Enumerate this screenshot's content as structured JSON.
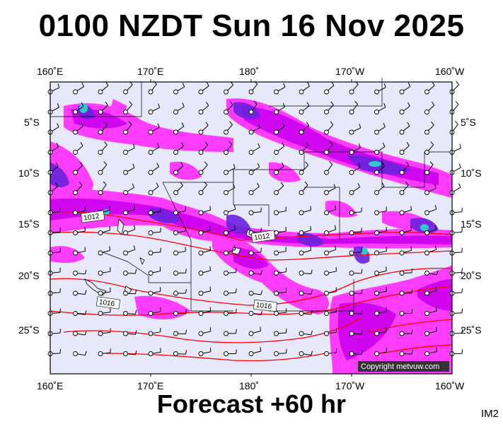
{
  "title": "0100 NZDT Sun 16 Nov 2025",
  "footer": "Forecast +60 hr",
  "image_code": "IM2",
  "copyright": "Copyright metvuw.com",
  "axes": {
    "lon_labels": [
      "160˚E",
      "170˚E",
      "180˚",
      "170˚W",
      "160˚W"
    ],
    "lat_labels": [
      "5˚S",
      "10˚S",
      "15˚S",
      "20˚S",
      "25˚S"
    ]
  },
  "isobars": [
    {
      "label": "1012"
    },
    {
      "label": "1012"
    },
    {
      "label": "1016"
    },
    {
      "label": "1016"
    }
  ],
  "colors": {
    "background": "#e8e8fb",
    "precip_light": "#ff33ff",
    "precip_medium": "#cc00ee",
    "precip_heavy": "#6a22dd",
    "precip_very_heavy": "#3030b0",
    "precip_extreme": "#30c8c8",
    "isobar": "#ff0000"
  }
}
